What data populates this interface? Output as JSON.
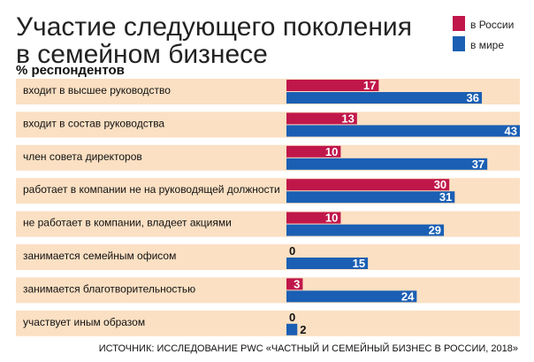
{
  "chart_data": {
    "type": "bar",
    "orientation": "horizontal",
    "title_line1": "Участие следующего поколения",
    "title_line2": "в семейном бизнесе",
    "subtitle": "% респондентов",
    "xlim": [
      0,
      43
    ],
    "categories": [
      "входит в высшее руководство",
      "входит в состав руководства",
      "член совета директоров",
      "работает в компании не на руководящей должности",
      "не работает в компании, владеет акциями",
      "занимается семейным офисом",
      "занимается благотворительностью",
      "участвует иным образом"
    ],
    "series": [
      {
        "name": "в России",
        "color": "#c0174a",
        "values": [
          17,
          13,
          10,
          30,
          10,
          0,
          3,
          0
        ]
      },
      {
        "name": "в мире",
        "color": "#1a5fb4",
        "values": [
          36,
          43,
          37,
          31,
          29,
          15,
          24,
          2
        ]
      }
    ],
    "legend_position": "top-right",
    "row_background": "#fbe0c3",
    "source": "ИСТОЧНИК: ИССЛЕДОВАНИЕ PWC «ЧАСТНЫЙ И СЕМЕЙНЫЙ БИЗНЕС В РОССИИ, 2018»"
  }
}
